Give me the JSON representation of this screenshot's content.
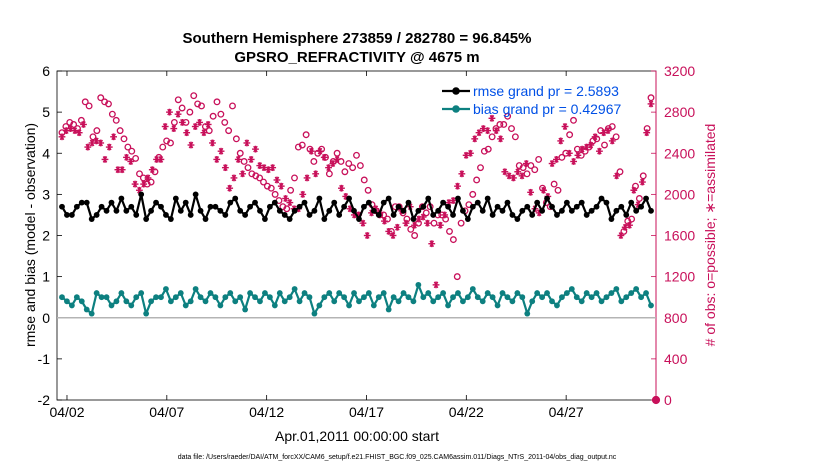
{
  "chart_data": {
    "type": "line",
    "title": [
      "Southern Hemisphere 273859 / 282780 = 96.845%",
      "GPSRO_REFRACTIVITY @ 4675 m"
    ],
    "xlabel": "Apr.01,2011 00:00:00 start",
    "ylabel": "rmse and bias (model - observation)",
    "ylabel_right": "# of obs: o=possible; ∗=assimilated",
    "x_range_days": [
      0.5,
      30.5
    ],
    "ylim": [
      -2,
      6
    ],
    "ylim_right": [
      0,
      3200
    ],
    "x_ticks": [
      {
        "label": "04/02",
        "day": 1
      },
      {
        "label": "04/07",
        "day": 6
      },
      {
        "label": "04/12",
        "day": 11
      },
      {
        "label": "04/17",
        "day": 16
      },
      {
        "label": "04/22",
        "day": 21
      },
      {
        "label": "04/27",
        "day": 26
      }
    ],
    "y_ticks": [
      "-2",
      "-1",
      "0",
      "1",
      "2",
      "3",
      "4",
      "5",
      "6"
    ],
    "y_ticks_right": [
      "0",
      "400",
      "800",
      "1200",
      "1600",
      "2000",
      "2400",
      "2800",
      "3200"
    ],
    "grid": false,
    "legend_position": "top-right",
    "series": [
      {
        "name": "rmse grand pr = 2.5893",
        "color": "#000000",
        "axis": "left",
        "marker": "filled-circle",
        "values": [
          2.7,
          2.5,
          2.5,
          2.7,
          2.8,
          2.8,
          2.4,
          2.5,
          2.7,
          2.6,
          2.8,
          2.6,
          2.9,
          2.6,
          2.7,
          2.5,
          3.0,
          2.4,
          2.6,
          2.8,
          2.7,
          2.5,
          2.4,
          2.9,
          2.6,
          2.8,
          2.5,
          3.0,
          2.6,
          2.4,
          2.7,
          2.7,
          2.6,
          2.5,
          2.8,
          2.9,
          2.6,
          2.5,
          2.7,
          2.8,
          2.6,
          2.4,
          2.7,
          2.8,
          2.6,
          2.5,
          2.4,
          2.6,
          2.7,
          2.8,
          2.5,
          2.6,
          2.9,
          2.4,
          2.6,
          2.8,
          2.5,
          2.7,
          2.9,
          2.6,
          2.4,
          2.7,
          2.8,
          2.6,
          2.5,
          2.8,
          2.9,
          2.5,
          2.7,
          2.6,
          2.8,
          2.4,
          2.6,
          2.7,
          2.9,
          2.5,
          2.6,
          2.8,
          2.7,
          2.5,
          2.9,
          2.6,
          2.4,
          2.7,
          2.8,
          2.6,
          2.9,
          2.5,
          2.7,
          2.6,
          2.8,
          2.5,
          2.4,
          2.6,
          2.7,
          2.5,
          2.8,
          2.6,
          2.9,
          2.7,
          2.5,
          2.6,
          2.8,
          2.6,
          2.7,
          2.8,
          2.5,
          2.6,
          2.7,
          2.9,
          2.8,
          2.4,
          2.6,
          2.7,
          2.5,
          2.8,
          2.6,
          2.7,
          2.9,
          2.6
        ]
      },
      {
        "name": "bias grand pr = 0.42967",
        "color": "#0d8080",
        "axis": "left",
        "marker": "filled-circle",
        "values": [
          0.5,
          0.4,
          0.3,
          0.5,
          0.4,
          0.2,
          0.1,
          0.6,
          0.5,
          0.5,
          0.3,
          0.4,
          0.6,
          0.4,
          0.3,
          0.5,
          0.6,
          0.1,
          0.4,
          0.5,
          0.5,
          0.7,
          0.4,
          0.5,
          0.6,
          0.3,
          0.4,
          0.7,
          0.5,
          0.4,
          0.6,
          0.5,
          0.3,
          0.5,
          0.6,
          0.4,
          0.5,
          0.2,
          0.6,
          0.5,
          0.4,
          0.6,
          0.5,
          0.3,
          0.6,
          0.4,
          0.5,
          0.7,
          0.4,
          0.6,
          0.5,
          0.1,
          0.3,
          0.5,
          0.6,
          0.4,
          0.6,
          0.5,
          0.3,
          0.6,
          0.4,
          0.5,
          0.6,
          0.3,
          0.5,
          0.6,
          0.2,
          0.5,
          0.4,
          0.6,
          0.5,
          0.4,
          0.8,
          0.5,
          0.6,
          0.4,
          0.5,
          0.6,
          0.3,
          0.5,
          0.6,
          0.4,
          0.5,
          0.7,
          0.5,
          0.4,
          0.6,
          0.5,
          0.3,
          0.6,
          0.5,
          0.4,
          0.6,
          0.5,
          0.1,
          0.4,
          0.6,
          0.5,
          0.6,
          0.4,
          0.3,
          0.5,
          0.6,
          0.7,
          0.5,
          0.4,
          0.6,
          0.5,
          0.6,
          0.4,
          0.5,
          0.6,
          0.7,
          0.4,
          0.5,
          0.6,
          0.7,
          0.5,
          0.6,
          0.3
        ]
      },
      {
        "name": "possible",
        "color": "#c8105a",
        "axis": "right",
        "marker": "open-circle",
        "values": [
          2600,
          2660,
          2700,
          2680,
          2640,
          2720,
          2900,
          2860,
          2560,
          2620,
          2940,
          2900,
          2880,
          2780,
          2720,
          2620,
          2540,
          2460,
          2420,
          2350,
          2200,
          2160,
          2100,
          2120,
          2220,
          2360,
          2460,
          2520,
          2500,
          2700,
          2920,
          2840,
          2700,
          2800,
          2960,
          2880,
          2860,
          2660,
          2620,
          2760,
          2900,
          2780,
          2700,
          2620,
          2860,
          2540,
          2400,
          2320,
          2260,
          2200,
          2180,
          2160,
          2120,
          2080,
          2060,
          2000,
          1940,
          1880,
          1860,
          2040,
          2160,
          2460,
          2480,
          2580,
          2440,
          2320,
          2400,
          2440,
          2360,
          2200,
          2320,
          2400,
          2320,
          2220,
          2300,
          2260,
          2380,
          2280,
          2140,
          2040,
          1900,
          1840,
          1800,
          1800,
          1760,
          1640,
          1880,
          1880,
          1820,
          1760,
          1660,
          1600,
          1720,
          1880,
          1820,
          1880,
          1720,
          1800,
          1800,
          1760,
          1640,
          1560,
          1200,
          1720,
          1840,
          1900,
          2000,
          2140,
          2260,
          2420,
          2440,
          2560,
          2640,
          2680,
          2680,
          2760,
          2640,
          2560,
          2280,
          2260,
          2200,
          2280,
          2240,
          2340,
          2060,
          1920,
          1880,
          2100,
          2040,
          2360,
          2400,
          2580,
          2720,
          2440,
          2380,
          2420,
          2460,
          2520,
          2540,
          2620,
          2480,
          2640,
          2660,
          2560,
          2220,
          1640,
          1740,
          1760,
          2080,
          1960,
          2180,
          2640,
          2940
        ]
      },
      {
        "name": "assimilated",
        "color": "#c8105a",
        "axis": "right",
        "marker": "asterisk",
        "values": [
          2560,
          2620,
          2640,
          2620,
          2600,
          2680,
          2460,
          2500,
          2520,
          2500,
          2340,
          2460,
          2560,
          2240,
          2240,
          2360,
          2320,
          2100,
          2040,
          2100,
          2160,
          2240,
          2340,
          2340,
          2660,
          2800,
          2640,
          2780,
          2700,
          2600,
          2480,
          2660,
          2700,
          2600,
          2680,
          2500,
          2340,
          2420,
          2260,
          2060,
          2160,
          2340,
          2200,
          2500,
          2340,
          2440,
          2280,
          2260,
          2240,
          2260,
          2140,
          2080,
          1960,
          1920,
          1860,
          1860,
          2000,
          2160,
          2420,
          2200,
          2420,
          2360,
          2260,
          2300,
          2340,
          2060,
          1980,
          1860,
          1800,
          1800,
          1720,
          1600,
          1820,
          1860,
          1820,
          1740,
          1640,
          1600,
          1680,
          1840,
          1720,
          1880,
          1700,
          1760,
          1780,
          1720,
          1520,
          1120,
          1700,
          1800,
          1920,
          1940,
          2080,
          2200,
          2380,
          2400,
          2540,
          2600,
          2640,
          2620,
          2740,
          2620,
          2540,
          2220,
          2180,
          2160,
          2220,
          2180,
          2300,
          2020,
          1860,
          1820,
          2040,
          1980,
          2300,
          2340,
          2520,
          2660,
          2400,
          2320,
          2380,
          2440,
          2460,
          2480,
          2560,
          2420,
          2600,
          2620,
          2520,
          2180,
          1600,
          1680,
          1700,
          2040,
          1900,
          2120,
          2600,
          2880
        ]
      }
    ],
    "right_axis_point_label": "0"
  },
  "footer": {
    "data_file": "data file: /Users/raeder/DAI/ATM_forcXX/CAM6_setup/f.e21.FHIST_BGC.f09_025.CAM6assim.011/Diags_NTrS_2011-04/obs_diag_output.nc"
  }
}
